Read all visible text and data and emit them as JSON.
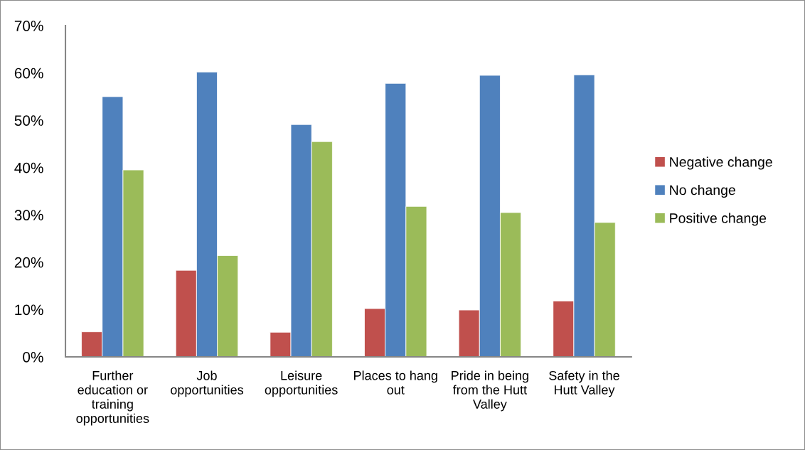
{
  "chart_data": {
    "type": "bar",
    "categories": [
      "Further education or training opportunities",
      "Job opportunities",
      "Leisure opportunities",
      "Places to hang out",
      "Pride in being from the Hutt Valley",
      "Safety in the Hutt Valley"
    ],
    "series": [
      {
        "name": "Negative change",
        "color": "#c0504d",
        "values": [
          5.3,
          18.3,
          5.2,
          10.2,
          9.9,
          11.8
        ]
      },
      {
        "name": "No change",
        "color": "#4f81bd",
        "values": [
          55.0,
          60.2,
          49.1,
          57.8,
          59.5,
          59.6
        ]
      },
      {
        "name": "Positive change",
        "color": "#9bbb59",
        "values": [
          39.5,
          21.4,
          45.5,
          31.8,
          30.5,
          28.4
        ]
      }
    ],
    "ylim": [
      0,
      70
    ],
    "yticks": [
      {
        "value": 0,
        "label": "0%"
      },
      {
        "value": 10,
        "label": "10%"
      },
      {
        "value": 20,
        "label": "20%"
      },
      {
        "value": 30,
        "label": "30%"
      },
      {
        "value": 40,
        "label": "40%"
      },
      {
        "value": 50,
        "label": "50%"
      },
      {
        "value": 60,
        "label": "60%"
      },
      {
        "value": 70,
        "label": "70%"
      }
    ],
    "grid": false,
    "legend": "right"
  }
}
